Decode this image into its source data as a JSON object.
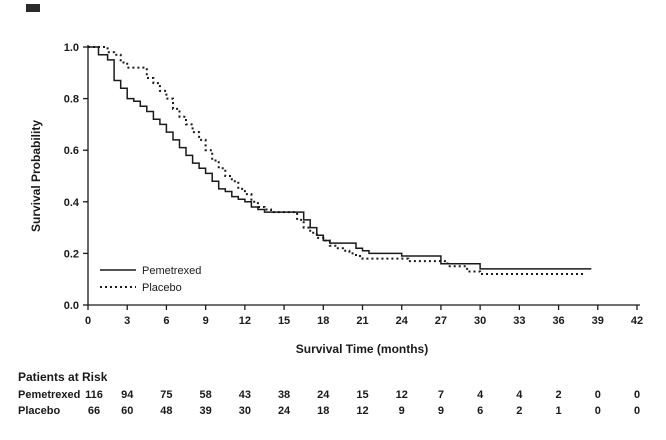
{
  "colors": {
    "line": "#1a1a1a",
    "text": "#1a1a1a",
    "background": "#ffffff"
  },
  "chart_data": {
    "type": "line",
    "subtype": "kaplan-meier-step",
    "title": "",
    "xlabel": "Survival Time (months)",
    "ylabel": "Survival Probability",
    "xlim": [
      0,
      42
    ],
    "ylim": [
      0.0,
      1.0
    ],
    "xticks": [
      0,
      3,
      6,
      9,
      12,
      15,
      18,
      21,
      24,
      27,
      30,
      33,
      36,
      39,
      42
    ],
    "yticks": [
      "1.0",
      "0.8",
      "0.6",
      "0.4",
      "0.2",
      "0.0"
    ],
    "ytick_values": [
      1.0,
      0.8,
      0.6,
      0.4,
      0.2,
      0.0
    ],
    "grid": false,
    "legend_position": "inside-lower-left",
    "series": [
      {
        "name": "Pemetrexed",
        "line_style": "solid",
        "points": [
          [
            0,
            1.0
          ],
          [
            0.8,
            0.97
          ],
          [
            1.5,
            0.95
          ],
          [
            2,
            0.87
          ],
          [
            2.5,
            0.84
          ],
          [
            3,
            0.8
          ],
          [
            3.5,
            0.79
          ],
          [
            4,
            0.77
          ],
          [
            4.5,
            0.75
          ],
          [
            5,
            0.72
          ],
          [
            5.5,
            0.7
          ],
          [
            6,
            0.67
          ],
          [
            6.5,
            0.64
          ],
          [
            7,
            0.61
          ],
          [
            7.5,
            0.58
          ],
          [
            8,
            0.55
          ],
          [
            8.5,
            0.53
          ],
          [
            9,
            0.51
          ],
          [
            9.5,
            0.48
          ],
          [
            10,
            0.45
          ],
          [
            10.5,
            0.44
          ],
          [
            11,
            0.42
          ],
          [
            11.5,
            0.41
          ],
          [
            12,
            0.4
          ],
          [
            12.5,
            0.38
          ],
          [
            13,
            0.37
          ],
          [
            13.5,
            0.36
          ],
          [
            16,
            0.36
          ],
          [
            16.5,
            0.33
          ],
          [
            17,
            0.3
          ],
          [
            17.5,
            0.27
          ],
          [
            18,
            0.25
          ],
          [
            18.5,
            0.24
          ],
          [
            20,
            0.24
          ],
          [
            20.5,
            0.22
          ],
          [
            21,
            0.21
          ],
          [
            21.5,
            0.2
          ],
          [
            23,
            0.2
          ],
          [
            24,
            0.19
          ],
          [
            26.5,
            0.19
          ],
          [
            27,
            0.16
          ],
          [
            29,
            0.16
          ],
          [
            30,
            0.14
          ],
          [
            38.5,
            0.14
          ]
        ]
      },
      {
        "name": "Placebo",
        "line_style": "dotted",
        "points": [
          [
            0,
            1.0
          ],
          [
            1.5,
            0.98
          ],
          [
            2,
            0.97
          ],
          [
            2.5,
            0.94
          ],
          [
            3,
            0.92
          ],
          [
            4,
            0.92
          ],
          [
            4.5,
            0.88
          ],
          [
            5,
            0.86
          ],
          [
            5.5,
            0.83
          ],
          [
            6,
            0.8
          ],
          [
            6.5,
            0.76
          ],
          [
            7,
            0.73
          ],
          [
            7.5,
            0.7
          ],
          [
            8,
            0.67
          ],
          [
            8.5,
            0.64
          ],
          [
            9,
            0.6
          ],
          [
            9.5,
            0.56
          ],
          [
            10,
            0.53
          ],
          [
            10.5,
            0.5
          ],
          [
            11,
            0.48
          ],
          [
            11.5,
            0.45
          ],
          [
            12,
            0.43
          ],
          [
            12.5,
            0.4
          ],
          [
            13,
            0.38
          ],
          [
            13.5,
            0.37
          ],
          [
            14,
            0.36
          ],
          [
            15.5,
            0.36
          ],
          [
            16,
            0.33
          ],
          [
            16.5,
            0.3
          ],
          [
            17,
            0.28
          ],
          [
            17.5,
            0.26
          ],
          [
            18,
            0.25
          ],
          [
            18.5,
            0.23
          ],
          [
            19,
            0.22
          ],
          [
            19.5,
            0.21
          ],
          [
            20,
            0.2
          ],
          [
            20.5,
            0.19
          ],
          [
            21,
            0.18
          ],
          [
            24,
            0.18
          ],
          [
            24.5,
            0.17
          ],
          [
            27,
            0.17
          ],
          [
            27.5,
            0.15
          ],
          [
            28.5,
            0.15
          ],
          [
            29,
            0.13
          ],
          [
            30,
            0.12
          ],
          [
            38,
            0.12
          ]
        ]
      }
    ],
    "patients_at_risk": {
      "title": "Patients at Risk",
      "time_points": [
        0,
        3,
        6,
        9,
        12,
        15,
        18,
        21,
        24,
        27,
        30,
        33,
        36,
        39,
        42
      ],
      "rows": [
        {
          "name": "Pemetrexed",
          "counts": [
            116,
            94,
            75,
            58,
            43,
            38,
            24,
            15,
            12,
            7,
            4,
            4,
            2,
            0,
            0
          ]
        },
        {
          "name": "Placebo",
          "counts": [
            66,
            60,
            48,
            39,
            30,
            24,
            18,
            12,
            9,
            9,
            6,
            2,
            1,
            0,
            0
          ]
        }
      ]
    }
  }
}
